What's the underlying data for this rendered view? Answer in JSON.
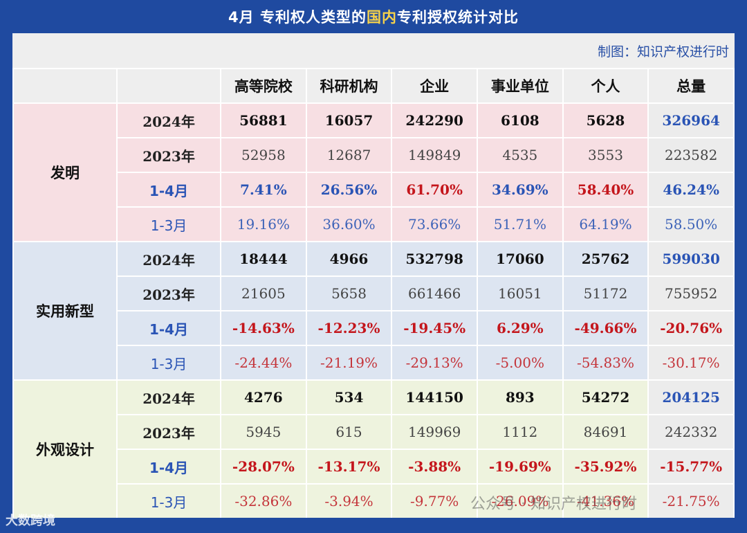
{
  "title": {
    "prefix": "4月  专利权人类型的",
    "highlight": "国内",
    "suffix": "专利授权统计对比"
  },
  "credit": "制图：知识产权进行时",
  "columns": [
    "高等院校",
    "科研机构",
    "企业",
    "事业单位",
    "个人",
    "总量"
  ],
  "groups": [
    {
      "name": "发明",
      "rows": [
        {
          "label": "2024年",
          "values": [
            "56881",
            "16057",
            "242290",
            "6108",
            "5628",
            "326964"
          ]
        },
        {
          "label": "2023年",
          "values": [
            "52958",
            "12687",
            "149849",
            "4535",
            "3553",
            "223582"
          ]
        },
        {
          "label": "1-4月",
          "values": [
            "7.41%",
            "26.56%",
            "61.70%",
            "34.69%",
            "58.40%",
            "46.24%"
          ]
        },
        {
          "label": "1-3月",
          "values": [
            "19.16%",
            "36.60%",
            "73.66%",
            "51.71%",
            "64.19%",
            "58.50%"
          ]
        }
      ]
    },
    {
      "name": "实用新型",
      "rows": [
        {
          "label": "2024年",
          "values": [
            "18444",
            "4966",
            "532798",
            "17060",
            "25762",
            "599030"
          ]
        },
        {
          "label": "2023年",
          "values": [
            "21605",
            "5658",
            "661466",
            "16051",
            "51172",
            "755952"
          ]
        },
        {
          "label": "1-4月",
          "values": [
            "-14.63%",
            "-12.23%",
            "-19.45%",
            "6.29%",
            "-49.66%",
            "-20.76%"
          ]
        },
        {
          "label": "1-3月",
          "values": [
            "-24.44%",
            "-21.19%",
            "-29.13%",
            "-5.00%",
            "-54.83%",
            "-30.17%"
          ]
        }
      ]
    },
    {
      "name": "外观设计",
      "rows": [
        {
          "label": "2024年",
          "values": [
            "4276",
            "534",
            "144150",
            "893",
            "54272",
            "204125"
          ]
        },
        {
          "label": "2023年",
          "values": [
            "5945",
            "615",
            "149969",
            "1112",
            "84691",
            "242332"
          ]
        },
        {
          "label": "1-4月",
          "values": [
            "-28.07%",
            "-13.17%",
            "-3.88%",
            "-19.69%",
            "-35.92%",
            "-15.77%"
          ]
        },
        {
          "label": "1-3月",
          "values": [
            "-32.86%",
            "-3.94%",
            "-9.77%",
            "-26.09%",
            "-41.36%",
            "-21.75%"
          ]
        }
      ]
    }
  ],
  "watermark": "公众号 · 知识产权进行时",
  "logo": "大数跨境",
  "colors": {
    "background": "#1f4aa0",
    "title_highlight": "#f7d24a",
    "invention_bg": "#f7dfe3",
    "utility_bg": "#dde5f1",
    "design_bg": "#eef3de",
    "positive": "#2a54b5",
    "negative": "#c4161c"
  },
  "chart_data": {
    "type": "table",
    "title": "4月  专利权人类型的国内专利授权统计对比",
    "columns": [
      "高等院校",
      "科研机构",
      "企业",
      "事业单位",
      "个人",
      "总量"
    ],
    "rows": [
      {
        "group": "发明",
        "label": "2024年",
        "values": [
          56881,
          16057,
          242290,
          6108,
          5628,
          326964
        ]
      },
      {
        "group": "发明",
        "label": "2023年",
        "values": [
          52958,
          12687,
          149849,
          4535,
          3553,
          223582
        ]
      },
      {
        "group": "发明",
        "label": "1-4月",
        "values": [
          7.41,
          26.56,
          61.7,
          34.69,
          58.4,
          46.24
        ]
      },
      {
        "group": "发明",
        "label": "1-3月",
        "values": [
          19.16,
          36.6,
          73.66,
          51.71,
          64.19,
          58.5
        ]
      },
      {
        "group": "实用新型",
        "label": "2024年",
        "values": [
          18444,
          4966,
          532798,
          17060,
          25762,
          599030
        ]
      },
      {
        "group": "实用新型",
        "label": "2023年",
        "values": [
          21605,
          5658,
          661466,
          16051,
          51172,
          755952
        ]
      },
      {
        "group": "实用新型",
        "label": "1-4月",
        "values": [
          -14.63,
          -12.23,
          -19.45,
          6.29,
          -49.66,
          -20.76
        ]
      },
      {
        "group": "实用新型",
        "label": "1-3月",
        "values": [
          -24.44,
          -21.19,
          -29.13,
          -5.0,
          -54.83,
          -30.17
        ]
      },
      {
        "group": "外观设计",
        "label": "2024年",
        "values": [
          4276,
          534,
          144150,
          893,
          54272,
          204125
        ]
      },
      {
        "group": "外观设计",
        "label": "2023年",
        "values": [
          5945,
          615,
          149969,
          1112,
          84691,
          242332
        ]
      },
      {
        "group": "外观设计",
        "label": "1-4月",
        "values": [
          -28.07,
          -13.17,
          -3.88,
          -19.69,
          -35.92,
          -15.77
        ]
      },
      {
        "group": "外观设计",
        "label": "1-3月",
        "values": [
          -32.86,
          -3.94,
          -9.77,
          -26.09,
          -41.36,
          -21.75
        ]
      }
    ]
  }
}
